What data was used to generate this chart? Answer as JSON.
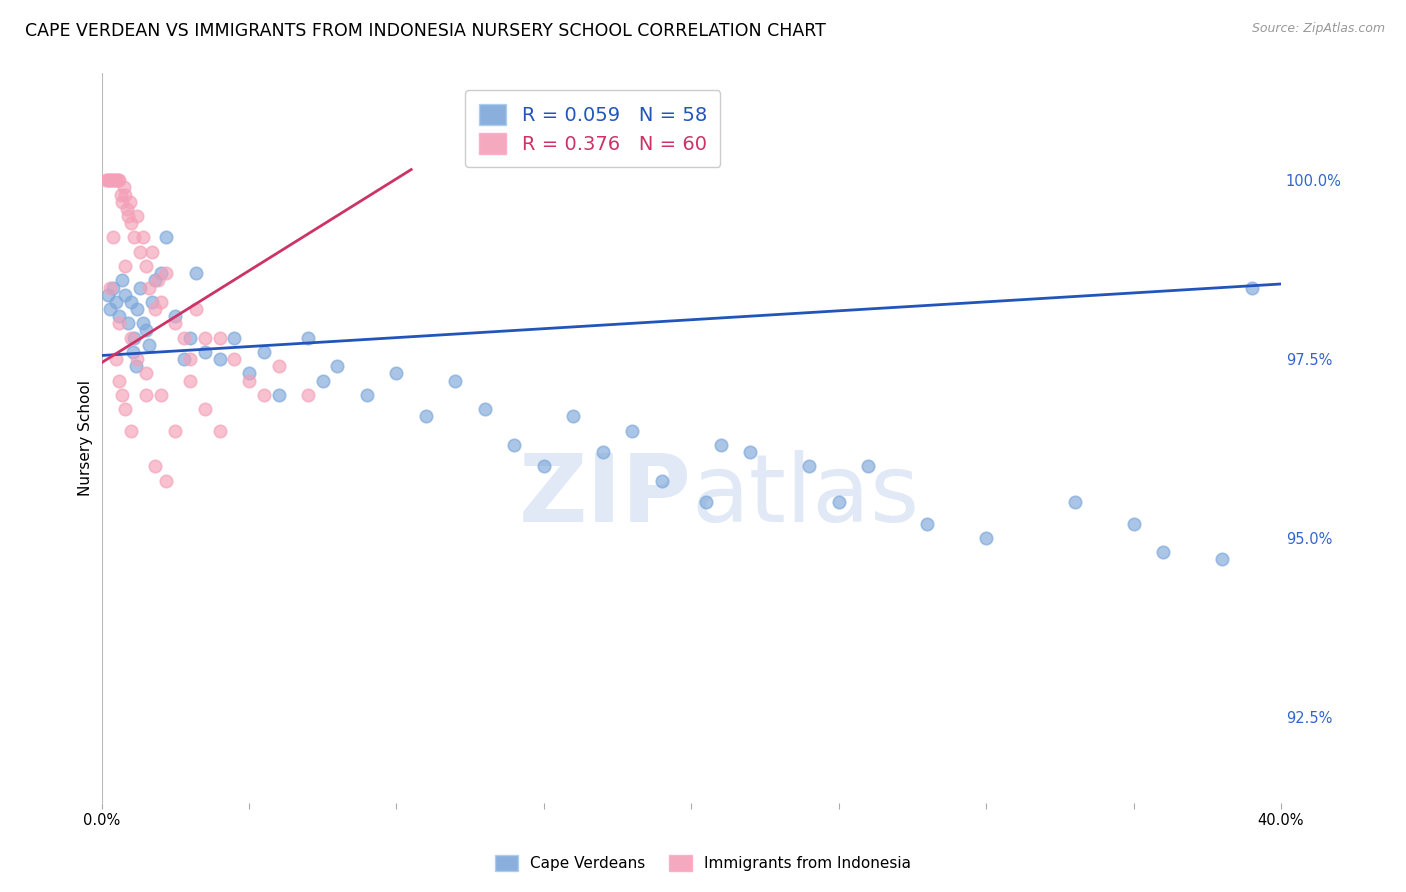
{
  "title": "CAPE VERDEAN VS IMMIGRANTS FROM INDONESIA NURSERY SCHOOL CORRELATION CHART",
  "source": "Source: ZipAtlas.com",
  "ylabel": "Nursery School",
  "ytick_labels": [
    "92.5%",
    "95.0%",
    "97.5%",
    "100.0%"
  ],
  "ytick_values": [
    92.5,
    95.0,
    97.5,
    100.0
  ],
  "xmin": 0.0,
  "xmax": 40.0,
  "ymin": 91.3,
  "ymax": 101.5,
  "legend_blue_text": "R = 0.059   N = 58",
  "legend_pink_text": "R = 0.376   N = 60",
  "blue_color": "#7DA7D9",
  "pink_color": "#F4A0B8",
  "blue_line_color": "#2255BB",
  "pink_line_color": "#CC3366",
  "watermark_text": "ZIPatlas",
  "blue_scatter_x": [
    0.2,
    0.3,
    0.4,
    0.5,
    0.6,
    0.7,
    0.8,
    0.9,
    1.0,
    1.1,
    1.2,
    1.3,
    1.4,
    1.5,
    1.6,
    1.7,
    1.8,
    2.0,
    2.2,
    2.5,
    2.8,
    3.0,
    3.2,
    3.5,
    4.0,
    4.5,
    5.0,
    5.5,
    6.0,
    7.0,
    7.5,
    8.0,
    9.0,
    10.0,
    11.0,
    12.0,
    13.0,
    14.0,
    15.0,
    16.0,
    17.0,
    18.0,
    19.0,
    20.5,
    21.0,
    22.0,
    24.0,
    25.0,
    26.0,
    28.0,
    30.0,
    33.0,
    35.0,
    36.0,
    38.0,
    39.0,
    1.05,
    1.15
  ],
  "blue_scatter_y": [
    98.4,
    98.2,
    98.5,
    98.3,
    98.1,
    98.6,
    98.4,
    98.0,
    98.3,
    97.8,
    98.2,
    98.5,
    98.0,
    97.9,
    97.7,
    98.3,
    98.6,
    98.7,
    99.2,
    98.1,
    97.5,
    97.8,
    98.7,
    97.6,
    97.5,
    97.8,
    97.3,
    97.6,
    97.0,
    97.8,
    97.2,
    97.4,
    97.0,
    97.3,
    96.7,
    97.2,
    96.8,
    96.3,
    96.0,
    96.7,
    96.2,
    96.5,
    95.8,
    95.5,
    96.3,
    96.2,
    96.0,
    95.5,
    96.0,
    95.2,
    95.0,
    95.5,
    95.2,
    94.8,
    94.7,
    98.5,
    97.6,
    97.4
  ],
  "pink_scatter_x": [
    0.15,
    0.2,
    0.25,
    0.3,
    0.35,
    0.4,
    0.45,
    0.5,
    0.55,
    0.6,
    0.65,
    0.7,
    0.75,
    0.8,
    0.85,
    0.9,
    0.95,
    1.0,
    1.1,
    1.2,
    1.3,
    1.4,
    1.5,
    1.6,
    1.7,
    1.8,
    1.9,
    2.0,
    2.2,
    2.5,
    2.8,
    3.0,
    3.2,
    3.5,
    4.0,
    4.5,
    5.0,
    5.5,
    6.0,
    7.0,
    0.5,
    0.6,
    0.7,
    0.8,
    1.0,
    1.2,
    1.5,
    2.0,
    2.5,
    3.0,
    3.5,
    4.0,
    1.8,
    2.2,
    0.3,
    0.4,
    0.6,
    0.8,
    1.0,
    1.5
  ],
  "pink_scatter_y": [
    100.0,
    100.0,
    100.0,
    100.0,
    100.0,
    100.0,
    100.0,
    100.0,
    100.0,
    100.0,
    99.8,
    99.7,
    99.9,
    99.8,
    99.6,
    99.5,
    99.7,
    99.4,
    99.2,
    99.5,
    99.0,
    99.2,
    98.8,
    98.5,
    99.0,
    98.2,
    98.6,
    98.3,
    98.7,
    98.0,
    97.8,
    97.5,
    98.2,
    97.8,
    97.8,
    97.5,
    97.2,
    97.0,
    97.4,
    97.0,
    97.5,
    97.2,
    97.0,
    96.8,
    96.5,
    97.5,
    97.3,
    97.0,
    96.5,
    97.2,
    96.8,
    96.5,
    96.0,
    95.8,
    98.5,
    99.2,
    98.0,
    98.8,
    97.8,
    97.0
  ],
  "blue_line_x": [
    0.0,
    40.0
  ],
  "blue_line_y": [
    97.55,
    98.55
  ],
  "pink_line_x": [
    0.0,
    10.5
  ],
  "pink_line_y": [
    97.45,
    100.15
  ],
  "grid_color": "#DDDDDD",
  "background_color": "#FFFFFF",
  "label_color": "#3366CC",
  "title_fontsize": 12.5,
  "axis_fontsize": 11,
  "tick_fontsize": 10.5,
  "marker_size": 9,
  "legend_fontsize": 14
}
